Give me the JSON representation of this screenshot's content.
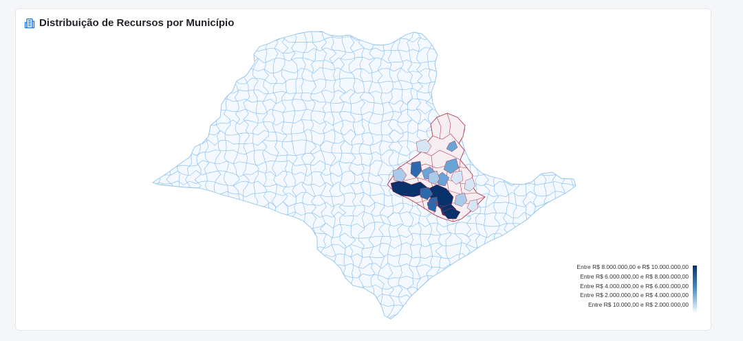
{
  "header": {
    "title": "Distribuição de Recursos por Município",
    "icon": "building-icon",
    "accent_color": "#1a73e8"
  },
  "map": {
    "region": "São Paulo",
    "base_fill": "#f4f9ff",
    "border_color": "#8ec1ee",
    "highlight_border_color": "#b0394f",
    "color_scale": [
      "#08306b",
      "#2d6aad",
      "#6aa4d6",
      "#a9cbe9",
      "#d6e6f5"
    ]
  },
  "legend": {
    "items": [
      "Entre R$ 8.000.000,00 e R$ 10.000.000,00",
      "Entre R$ 6.000.000,00 e R$ 8.000.000,00",
      "Entre R$ 4.000.000,00 e R$ 6.000.000,00",
      "Entre R$ 2.000.000,00 e R$ 4.000.000,00",
      "Entre R$ 10.000,00 e R$ 2.000.000,00"
    ]
  }
}
